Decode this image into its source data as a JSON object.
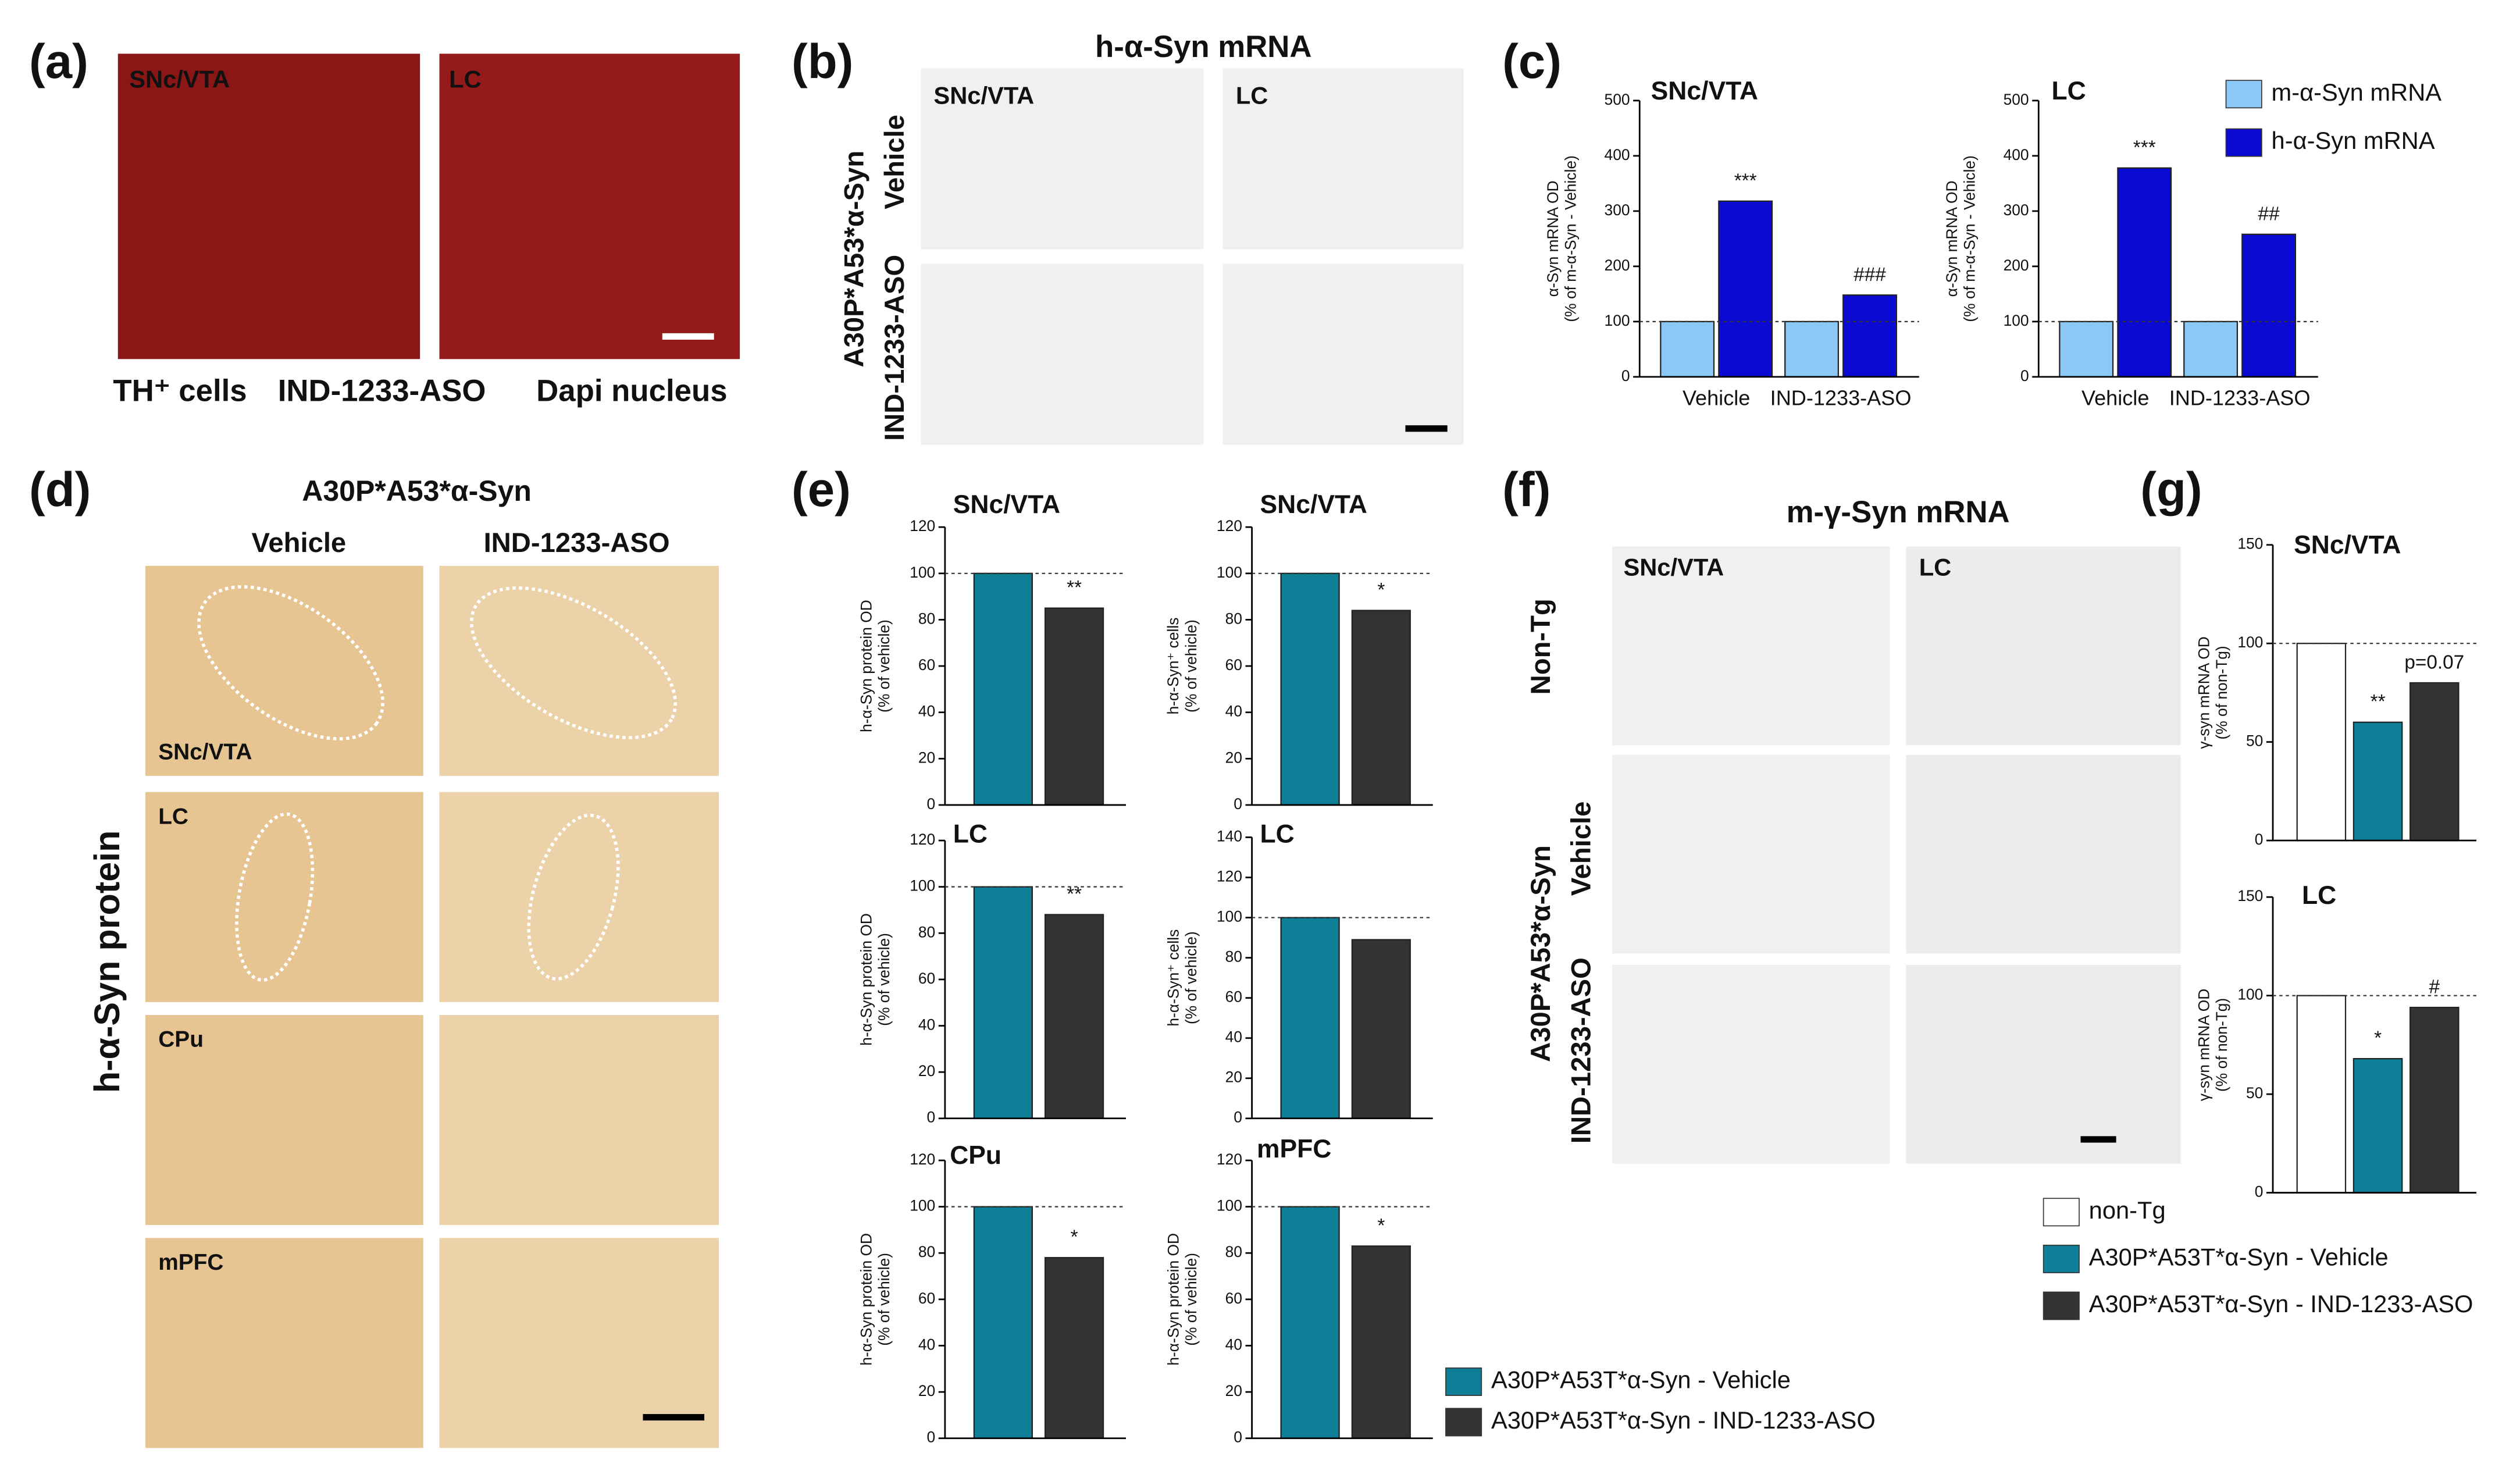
{
  "panels": {
    "a": {
      "label": "(a)",
      "image_labels": [
        "SNc/VTA",
        "LC"
      ],
      "caption": [
        "TH⁺ cells",
        "IND-1233-ASO",
        "Dapi nucleus"
      ]
    },
    "b": {
      "label": "(b)",
      "title": "h-α-Syn mRNA",
      "column_labels": [
        "SNc/VTA",
        "LC"
      ],
      "row_labels": [
        "Vehicle",
        "IND-1233-ASO"
      ],
      "group_label": "A30P*A53*α-Syn"
    },
    "c": {
      "label": "(c)",
      "legend": [
        {
          "name": "m-α-Syn mRNA",
          "color": "#8cc8f5"
        },
        {
          "name": "h-α-Syn mRNA",
          "color": "#0a0ad2"
        }
      ]
    },
    "d": {
      "label": "(d)",
      "title": "A30P*A53*α-Syn",
      "column_labels": [
        "Vehicle",
        "IND-1233-ASO"
      ],
      "row_labels": [
        "SNc/VTA",
        "LC",
        "CPu",
        "mPFC"
      ],
      "side_label": "h-α-Syn protein"
    },
    "e": {
      "label": "(e)",
      "legend": [
        {
          "name": "A30P*A53T*α-Syn - Vehicle",
          "color": "#0e7f96"
        },
        {
          "name": "A30P*A53T*α-Syn - IND-1233-ASO",
          "color": "#333333"
        }
      ]
    },
    "f": {
      "label": "(f)",
      "title": "m-γ-Syn mRNA",
      "column_labels": [
        "SNc/VTA",
        "LC"
      ],
      "row_labels": [
        "Non-Tg",
        "Vehicle",
        "IND-1233-ASO"
      ],
      "group_label": "A30P*A53*α-Syn"
    },
    "g": {
      "label": "(g)",
      "legend": [
        {
          "name": "non-Tg",
          "color": "#ffffff"
        },
        {
          "name": "A30P*A53T*α-Syn - Vehicle",
          "color": "#0e7f96"
        },
        {
          "name": "A30P*A53T*α-Syn - IND-1233-ASO",
          "color": "#333333"
        }
      ]
    }
  },
  "chart_data": [
    {
      "type": "bar",
      "title": "SNc/VTA",
      "ylabel": [
        "α-Syn mRNA OD",
        "(% of m-α-Syn - Vehicle)"
      ],
      "categories": [
        "Vehicle",
        "IND-1233-ASO"
      ],
      "series": [
        {
          "color": "#8cc8f5",
          "values": [
            100,
            100
          ]
        },
        {
          "color": "#0a0ad2",
          "values": [
            318,
            148
          ],
          "annotations": [
            "***",
            "###"
          ]
        }
      ],
      "ylim": [
        0,
        500
      ],
      "yticks": [
        0,
        100,
        200,
        300,
        400,
        500
      ],
      "reference_line": 100
    },
    {
      "type": "bar",
      "title": "LC",
      "ylabel": [
        "α-Syn mRNA OD",
        "(% of m-α-Syn - Vehicle)"
      ],
      "categories": [
        "Vehicle",
        "IND-1233-ASO"
      ],
      "series": [
        {
          "color": "#8cc8f5",
          "values": [
            100,
            100
          ]
        },
        {
          "color": "#0a0ad2",
          "values": [
            378,
            258
          ],
          "annotations": [
            "***",
            "##"
          ]
        }
      ],
      "ylim": [
        0,
        500
      ],
      "yticks": [
        0,
        100,
        200,
        300,
        400,
        500
      ],
      "reference_line": 100
    },
    {
      "type": "bar",
      "title": "SNc/VTA",
      "ylabel": [
        "h-α-Syn protein OD",
        "(% of vehicle)"
      ],
      "values": [
        100,
        85
      ],
      "colors": [
        "#0e7f96",
        "#333333"
      ],
      "annotations": [
        null,
        "**"
      ],
      "ylim": [
        0,
        120
      ],
      "yticks": [
        0,
        20,
        40,
        60,
        80,
        100,
        120
      ],
      "reference_line": 100
    },
    {
      "type": "bar",
      "title": "SNc/VTA",
      "ylabel": [
        "h-α-Syn⁺ cells",
        "(% of vehicle)"
      ],
      "values": [
        100,
        84
      ],
      "colors": [
        "#0e7f96",
        "#333333"
      ],
      "annotations": [
        null,
        "*"
      ],
      "ylim": [
        0,
        120
      ],
      "yticks": [
        0,
        20,
        40,
        60,
        80,
        100,
        120
      ],
      "reference_line": 100
    },
    {
      "type": "bar",
      "title": "LC",
      "ylabel": [
        "h-α-Syn protein OD",
        "(% of vehicle)"
      ],
      "values": [
        100,
        88
      ],
      "colors": [
        "#0e7f96",
        "#333333"
      ],
      "annotations": [
        null,
        "**"
      ],
      "ylim": [
        0,
        120
      ],
      "yticks": [
        0,
        20,
        40,
        60,
        80,
        100,
        120
      ],
      "reference_line": 100
    },
    {
      "type": "bar",
      "title": "LC",
      "ylabel": [
        "h-α-Syn⁺ cells",
        "(% of vehicle)"
      ],
      "values": [
        100,
        89
      ],
      "colors": [
        "#0e7f96",
        "#333333"
      ],
      "ylim": [
        0,
        140
      ],
      "yticks": [
        0,
        20,
        40,
        60,
        80,
        100,
        120,
        140
      ],
      "reference_line": 100
    },
    {
      "type": "bar",
      "title": "CPu",
      "ylabel": [
        "h-α-Syn protein OD",
        "(% of vehicle)"
      ],
      "values": [
        100,
        78
      ],
      "colors": [
        "#0e7f96",
        "#333333"
      ],
      "annotations": [
        null,
        "*"
      ],
      "ylim": [
        0,
        120
      ],
      "yticks": [
        0,
        20,
        40,
        60,
        80,
        100,
        120
      ],
      "reference_line": 100
    },
    {
      "type": "bar",
      "title": "mPFC",
      "ylabel": [
        "h-α-Syn protein OD",
        "(% of vehicle)"
      ],
      "values": [
        100,
        83
      ],
      "colors": [
        "#0e7f96",
        "#333333"
      ],
      "annotations": [
        null,
        "*"
      ],
      "ylim": [
        0,
        120
      ],
      "yticks": [
        0,
        20,
        40,
        60,
        80,
        100,
        120
      ],
      "reference_line": 100
    },
    {
      "type": "bar",
      "title": "SNc/VTA",
      "ylabel": [
        "γ-syn mRNA OD",
        "(% of non-Tg)"
      ],
      "values": [
        100,
        60,
        80
      ],
      "colors": [
        "#ffffff",
        "#0e7f96",
        "#333333"
      ],
      "annotations": [
        null,
        "**",
        "p=0.07"
      ],
      "ylim": [
        0,
        150
      ],
      "yticks": [
        0,
        50,
        100,
        150
      ],
      "reference_line": 100
    },
    {
      "type": "bar",
      "title": "LC",
      "ylabel": [
        "γ-syn mRNA OD",
        "(% of non-Tg)"
      ],
      "values": [
        100,
        68,
        94
      ],
      "colors": [
        "#ffffff",
        "#0e7f96",
        "#333333"
      ],
      "annotations": [
        null,
        "*",
        "#"
      ],
      "ylim": [
        0,
        150
      ],
      "yticks": [
        0,
        50,
        100,
        150
      ],
      "reference_line": 100
    }
  ]
}
